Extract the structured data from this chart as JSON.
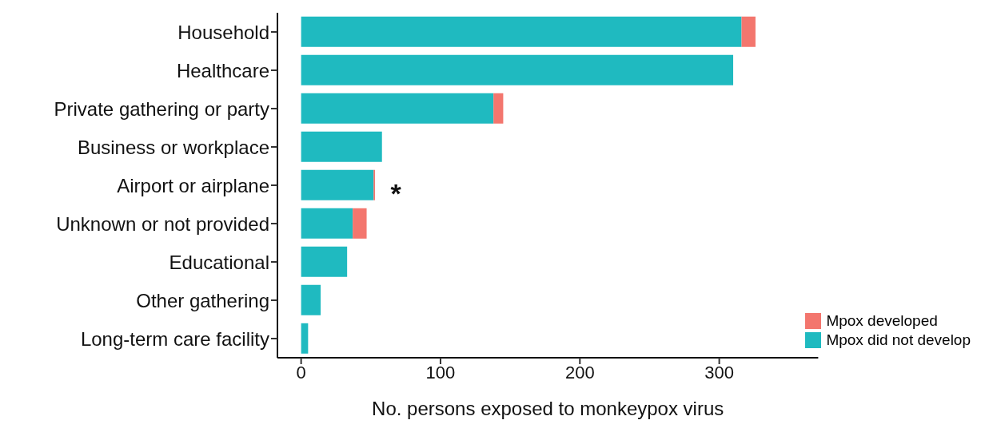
{
  "chart_data": {
    "type": "bar",
    "orientation": "horizontal",
    "stacked": true,
    "xlabel": "No. persons exposed to monkeypox virus",
    "categories": [
      "Household",
      "Healthcare",
      "Private gathering or party",
      "Business or workplace",
      "Airport or airplane",
      "Unknown or not provided",
      "Educational",
      "Other gathering",
      "Long-term care facility"
    ],
    "series": [
      {
        "name": "Mpox did not develop",
        "color": "#1fbac0",
        "values": [
          316,
          310,
          138,
          58,
          52,
          37,
          33,
          14,
          5
        ]
      },
      {
        "name": "Mpox developed",
        "color": "#f3766e",
        "values": [
          10,
          0,
          7,
          0,
          1,
          10,
          0,
          0,
          0
        ]
      }
    ],
    "xlim": [
      -17,
      371
    ],
    "xticks": [
      0,
      100,
      200,
      300
    ],
    "grid": false,
    "legend": "bottom right",
    "annotations": [
      {
        "text": "*",
        "x": 53,
        "y": "Airport or airplane"
      }
    ]
  }
}
